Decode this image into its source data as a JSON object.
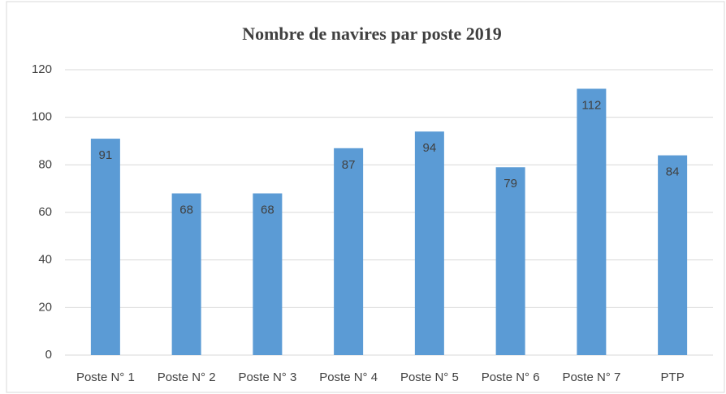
{
  "chart_data": {
    "type": "bar",
    "title": "Nombre de navires par poste  2019",
    "categories": [
      "Poste N° 1",
      "Poste N° 2",
      "Poste N° 3",
      "Poste N° 4",
      "Poste N° 5",
      "Poste N° 6",
      "Poste N° 7",
      "PTP"
    ],
    "values": [
      91,
      68,
      68,
      87,
      94,
      79,
      112,
      84
    ],
    "color": "#5b9bd5",
    "ylim": [
      0,
      120
    ],
    "yticks": [
      0,
      20,
      40,
      60,
      80,
      100,
      120
    ],
    "grid": true,
    "data_labels": true
  }
}
